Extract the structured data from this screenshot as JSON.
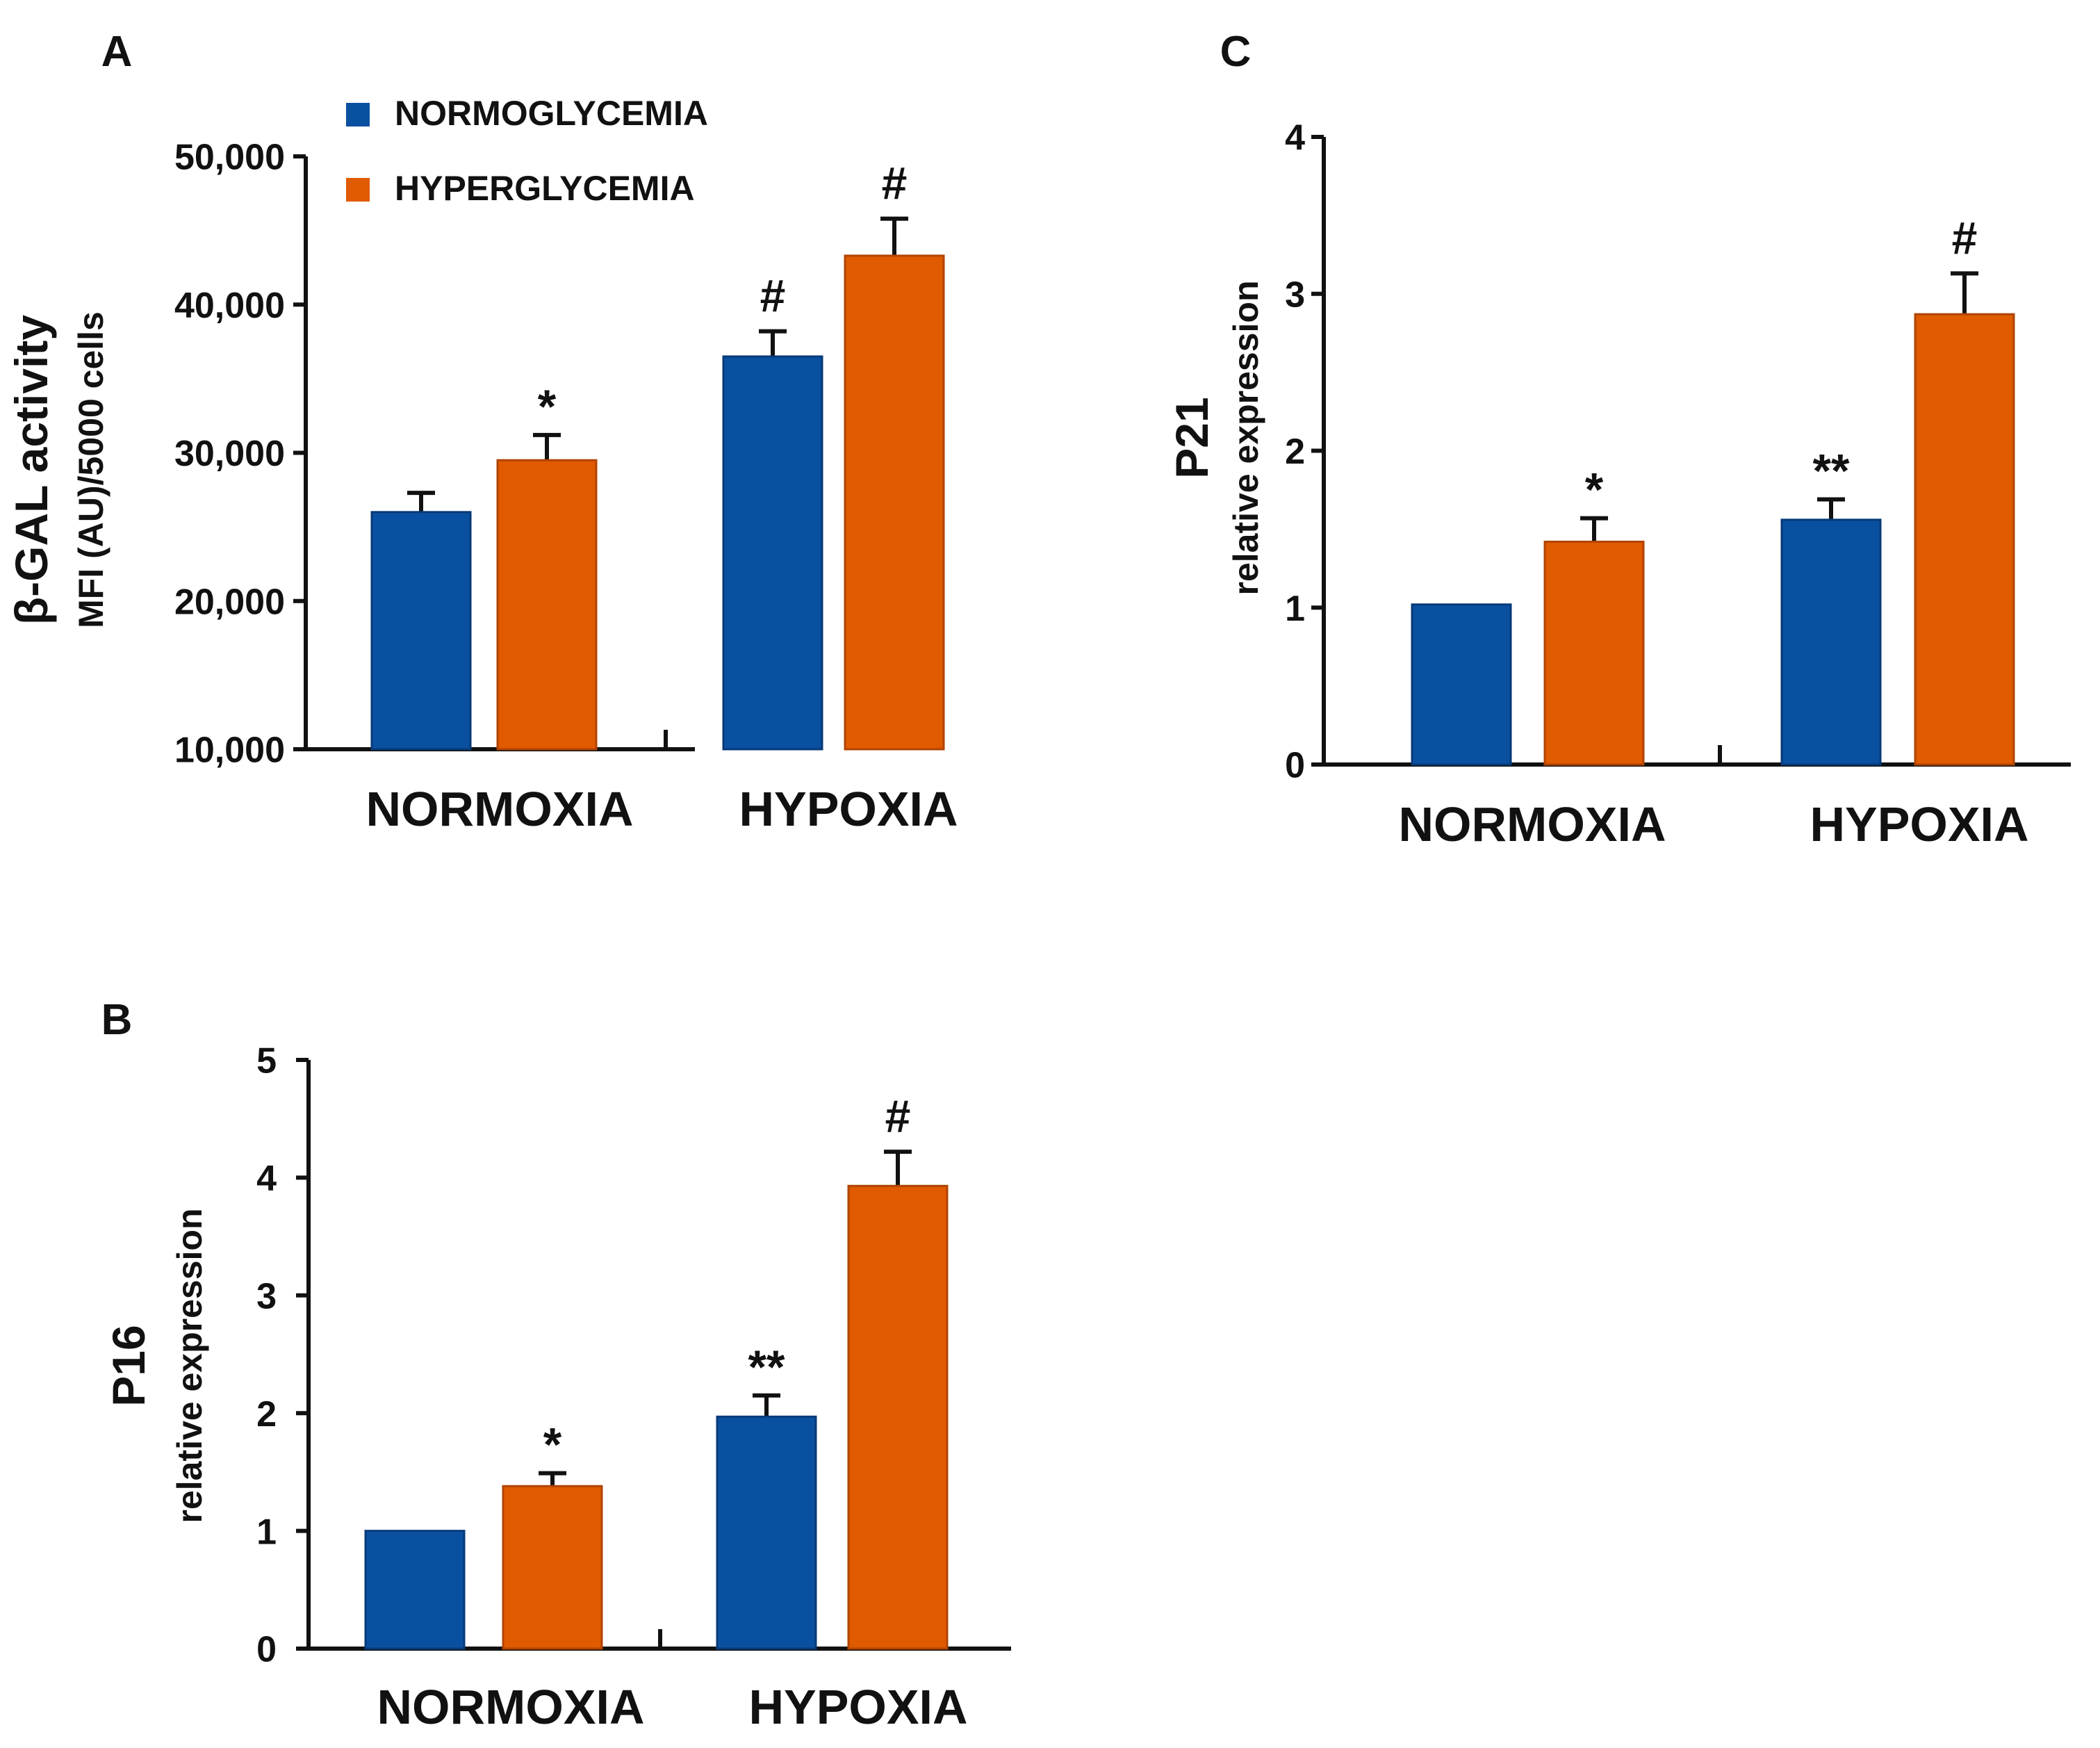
{
  "colors": {
    "normo": "#0a50a1",
    "hyper": "#e05a00",
    "axis": "#111111"
  },
  "legend": [
    {
      "name": "NORMOGLYCEMIA",
      "color": "#0a50a1"
    },
    {
      "name": "HYPERGLYCEMIA",
      "color": "#e05a00"
    }
  ],
  "chart_data": [
    {
      "panel": "A",
      "type": "bar",
      "ylabel": "β-GAL activity",
      "ylabel2": "MFI (AU)/5000 cells",
      "ylim": [
        10000,
        50000
      ],
      "yticks": [
        10000,
        20000,
        30000,
        40000,
        50000
      ],
      "ytick_labels": [
        "10,000",
        "20,000",
        "30,000",
        "40,000",
        "50,000"
      ],
      "categories": [
        "NORMOXIA",
        "HYPOXIA"
      ],
      "series": [
        {
          "name": "NORMOGLYCEMIA",
          "values": [
            26000,
            36500
          ],
          "errors": [
            1300,
            1700
          ],
          "marks": [
            "",
            "#"
          ]
        },
        {
          "name": "HYPERGLYCEMIA",
          "values": [
            29500,
            43300
          ],
          "errors": [
            1700,
            2500
          ],
          "marks": [
            "*",
            "#"
          ]
        }
      ]
    },
    {
      "panel": "B",
      "type": "bar",
      "ylabel": "P16",
      "ylabel2": "relative expression",
      "ylim": [
        0,
        5
      ],
      "yticks": [
        0,
        1,
        2,
        3,
        4,
        5
      ],
      "ytick_labels": [
        "0",
        "1",
        "2",
        "3",
        "4",
        "5"
      ],
      "categories": [
        "NORMOXIA",
        "HYPOXIA"
      ],
      "series": [
        {
          "name": "NORMOGLYCEMIA",
          "values": [
            1.0,
            1.97
          ],
          "errors": [
            0,
            0.18
          ],
          "marks": [
            "",
            "**"
          ]
        },
        {
          "name": "HYPERGLYCEMIA",
          "values": [
            1.38,
            3.93
          ],
          "errors": [
            0.11,
            0.29
          ],
          "marks": [
            "*",
            "#"
          ]
        }
      ]
    },
    {
      "panel": "C",
      "type": "bar",
      "ylabel": "P21",
      "ylabel2": "relative expression",
      "ylim": [
        0,
        4
      ],
      "yticks": [
        0,
        1,
        2,
        3,
        4
      ],
      "ytick_labels": [
        "0",
        "1",
        "2",
        "3",
        "4"
      ],
      "categories": [
        "NORMOXIA",
        "HYPOXIA"
      ],
      "series": [
        {
          "name": "NORMOGLYCEMIA",
          "values": [
            1.02,
            1.56
          ],
          "errors": [
            0,
            0.13
          ],
          "marks": [
            "",
            "**"
          ]
        },
        {
          "name": "HYPERGLYCEMIA",
          "values": [
            1.42,
            2.87
          ],
          "errors": [
            0.15,
            0.26
          ],
          "marks": [
            "*",
            "#"
          ]
        }
      ]
    }
  ]
}
